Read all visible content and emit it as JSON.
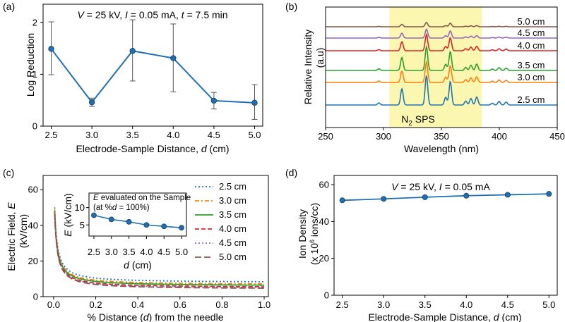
{
  "chart_data": [
    {
      "panel_label": "(a)",
      "type": "line",
      "annotation": "V = 25 kV, I = 0.05 mA, t = 7.5 min",
      "xlabel": "Electrode-Sample Distance, d (cm)",
      "ylabel": "Log Reduction",
      "xlim": [
        2.4,
        5.1
      ],
      "ylim": [
        0,
        2.35
      ],
      "xticks": [
        2.5,
        3.0,
        3.5,
        4.0,
        4.5,
        5.0
      ],
      "xtick_labels": [
        "2.5",
        "3.0",
        "3.5",
        "4.0",
        "4.5",
        "5.0"
      ],
      "yticks": [
        0,
        1,
        2
      ],
      "ytick_labels": [
        "0",
        "1",
        "2"
      ],
      "x": [
        2.5,
        3.0,
        3.5,
        4.0,
        4.5,
        5.0
      ],
      "y": [
        1.49,
        0.46,
        1.45,
        1.31,
        0.49,
        0.45
      ],
      "yerr_low": [
        0.5,
        0.08,
        0.58,
        0.65,
        0.16,
        0.32
      ],
      "yerr_high": [
        0.52,
        0.08,
        0.6,
        0.66,
        0.16,
        0.35
      ],
      "color": "#1f6fb2",
      "grid": false
    },
    {
      "panel_label": "(b)",
      "type": "line",
      "xlabel": "Wavelength (nm)",
      "ylabel": "Relative Intensity (a.u)",
      "xlim": [
        250,
        450
      ],
      "xticks": [
        250,
        300,
        350,
        400,
        450
      ],
      "xtick_labels": [
        "250",
        "300",
        "350",
        "400",
        "450"
      ],
      "highlight_band": [
        305,
        385
      ],
      "highlight_label": "N",
      "highlight_label_sub": "2",
      "highlight_label_tail": " SPS",
      "highlight_color": "#fbf7b0",
      "peaks": [
        {
          "x": 296,
          "rel": 0.07
        },
        {
          "x": 315.9,
          "rel": 0.55
        },
        {
          "x": 337.1,
          "rel": 1.0
        },
        {
          "x": 353.7,
          "rel": 0.26
        },
        {
          "x": 357.7,
          "rel": 0.8
        },
        {
          "x": 371,
          "rel": 0.13
        },
        {
          "x": 375.5,
          "rel": 0.22
        },
        {
          "x": 380.5,
          "rel": 0.27
        },
        {
          "x": 394,
          "rel": 0.06
        },
        {
          "x": 399.8,
          "rel": 0.12
        },
        {
          "x": 405.9,
          "rel": 0.1
        }
      ],
      "series": [
        {
          "name": "2.5 cm",
          "color": "#1f77b4",
          "scale": 1.0
        },
        {
          "name": "3.0 cm",
          "color": "#ff7f0e",
          "scale": 0.7
        },
        {
          "name": "3.5 cm",
          "color": "#2ca02c",
          "scale": 0.8
        },
        {
          "name": "4.0 cm",
          "color": "#d62728",
          "scale": 0.55
        },
        {
          "name": "4.5 cm",
          "color": "#9467bd",
          "scale": 0.3
        },
        {
          "name": "5.0 cm",
          "color": "#8c564b",
          "scale": 0.15
        }
      ]
    },
    {
      "panel_label": "(c)",
      "type": "line",
      "xlabel": "% Distance (d) from the needle",
      "ylabel": "Electric Field, E (kV/cm)",
      "xlim": [
        -0.05,
        1.02
      ],
      "ylim": [
        0,
        68
      ],
      "xticks": [
        0.0,
        0.2,
        0.4,
        0.6,
        0.8,
        1.0
      ],
      "xtick_labels": [
        "0.0",
        "0.2",
        "0.4",
        "0.6",
        "0.8",
        "1.0"
      ],
      "yticks": [
        0,
        20,
        40,
        60
      ],
      "ytick_labels": [
        "0",
        "20",
        "40",
        "60"
      ],
      "series": [
        {
          "name": "2.5 cm",
          "color": "#1f77b4",
          "style": "dotted",
          "floor": 7.8
        },
        {
          "name": "3.0 cm",
          "color": "#ff7f0e",
          "style": "dashdot",
          "floor": 6.6
        },
        {
          "name": "3.5 cm",
          "color": "#2ca02c",
          "style": "solid",
          "floor": 5.9
        },
        {
          "name": "4.0 cm",
          "color": "#d62728",
          "style": "dashed",
          "floor": 5.0
        },
        {
          "name": "4.5 cm",
          "color": "#9467bd",
          "style": "dotted",
          "floor": 4.6
        },
        {
          "name": "5.0 cm",
          "color": "#8c564b",
          "style": "longdash",
          "floor": 4.2
        }
      ],
      "inset": {
        "title_line1_E": "E",
        "title_line1_rest": " evaluated on the Sample",
        "title_line2_pre": "(at %",
        "title_line2_d": "d",
        "title_line2_post": " = 100%)",
        "xlabel": "d (cm)",
        "ylabel": "E (kV/cm)",
        "x": [
          2.5,
          3.0,
          3.5,
          4.0,
          4.5,
          5.0
        ],
        "y": [
          7.8,
          6.6,
          5.9,
          5.0,
          4.6,
          4.2
        ],
        "xlim": [
          2.4,
          5.1
        ],
        "ylim": [
          2,
          14
        ],
        "xticks": [
          2.5,
          3.0,
          3.5,
          4.0,
          4.5,
          5.0
        ],
        "xtick_labels": [
          "2.5",
          "3.0",
          "3.5",
          "4.0",
          "4.5",
          "5.0"
        ],
        "yticks": [
          5,
          10
        ],
        "ytick_labels": [
          "5",
          "10"
        ],
        "color": "#1f6fb2"
      }
    },
    {
      "panel_label": "(d)",
      "type": "line",
      "annotation": "V = 25 kV, I = 0.05 mA",
      "xlabel": "Electrode-Sample Distance, d (cm)",
      "ylabel": "Ion Density (x 10^6 ions/cc)",
      "xlim": [
        2.4,
        5.1
      ],
      "ylim": [
        0,
        65
      ],
      "xticks": [
        2.5,
        3.0,
        3.5,
        4.0,
        4.5,
        5.0
      ],
      "xtick_labels": [
        "2.5",
        "3.0",
        "3.5",
        "4.0",
        "4.5",
        "5.0"
      ],
      "yticks": [
        0,
        20,
        40,
        60
      ],
      "ytick_labels": [
        "0",
        "20",
        "40",
        "60"
      ],
      "x": [
        2.5,
        3.0,
        3.5,
        4.0,
        4.5,
        5.0
      ],
      "y": [
        51.5,
        52.3,
        53.2,
        54.0,
        54.5,
        55.0
      ],
      "color": "#1f6fb2",
      "grid": false
    }
  ]
}
